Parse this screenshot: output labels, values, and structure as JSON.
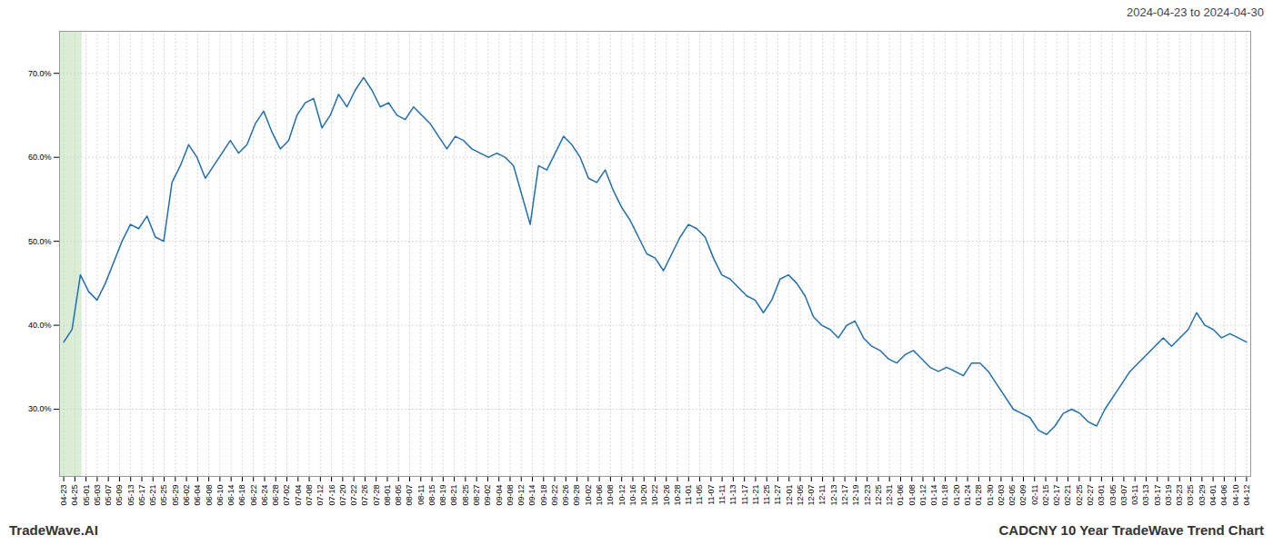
{
  "chart_data": {
    "type": "line",
    "title": "2024-04-23 to 2024-04-30",
    "annotations": [
      "TradeWave.AI",
      "CADCNY 10 Year TradeWave Trend Chart"
    ],
    "color": "#1f6eb5",
    "grid": true,
    "highlight": {
      "start": -0.5,
      "end": 2.2,
      "color": "#d6ecd2"
    },
    "ylim": [
      22,
      75
    ],
    "yticks": [
      {
        "value": 30.0,
        "label": "30.0%"
      },
      {
        "value": 40.0,
        "label": "40.0%"
      },
      {
        "value": 50.0,
        "label": "50.0%"
      },
      {
        "value": 60.0,
        "label": "60.0%"
      },
      {
        "value": 70.0,
        "label": "70.0%"
      }
    ],
    "xlim": [
      -0.5,
      142.5
    ],
    "xticks": [
      {
        "value": 0,
        "label": "04-23"
      },
      {
        "value": 1.3396,
        "label": "04-25"
      },
      {
        "value": 2.6792,
        "label": "05-01"
      },
      {
        "value": 4.0189,
        "label": "05-03"
      },
      {
        "value": 5.3585,
        "label": "05-07"
      },
      {
        "value": 6.6981,
        "label": "05-09"
      },
      {
        "value": 8.0377,
        "label": "05-13"
      },
      {
        "value": 9.3774,
        "label": "05-17"
      },
      {
        "value": 10.717,
        "label": "05-21"
      },
      {
        "value": 12.0566,
        "label": "05-25"
      },
      {
        "value": 13.3962,
        "label": "05-29"
      },
      {
        "value": 14.7358,
        "label": "06-02"
      },
      {
        "value": 16.0755,
        "label": "06-04"
      },
      {
        "value": 17.4151,
        "label": "06-08"
      },
      {
        "value": 18.7547,
        "label": "06-10"
      },
      {
        "value": 20.0943,
        "label": "06-14"
      },
      {
        "value": 21.434,
        "label": "06-18"
      },
      {
        "value": 22.7736,
        "label": "06-22"
      },
      {
        "value": 24.1132,
        "label": "06-24"
      },
      {
        "value": 25.4528,
        "label": "06-28"
      },
      {
        "value": 26.7925,
        "label": "07-02"
      },
      {
        "value": 28.1321,
        "label": "07-04"
      },
      {
        "value": 29.4717,
        "label": "07-08"
      },
      {
        "value": 30.8113,
        "label": "07-12"
      },
      {
        "value": 32.1509,
        "label": "07-16"
      },
      {
        "value": 33.4906,
        "label": "07-20"
      },
      {
        "value": 34.8302,
        "label": "07-22"
      },
      {
        "value": 36.1698,
        "label": "07-26"
      },
      {
        "value": 37.5094,
        "label": "07-28"
      },
      {
        "value": 38.8491,
        "label": "08-01"
      },
      {
        "value": 40.1887,
        "label": "08-05"
      },
      {
        "value": 41.5283,
        "label": "08-07"
      },
      {
        "value": 42.8679,
        "label": "08-11"
      },
      {
        "value": 44.2075,
        "label": "08-15"
      },
      {
        "value": 45.5472,
        "label": "08-19"
      },
      {
        "value": 46.8868,
        "label": "08-21"
      },
      {
        "value": 48.2264,
        "label": "08-25"
      },
      {
        "value": 49.566,
        "label": "08-27"
      },
      {
        "value": 50.9057,
        "label": "09-02"
      },
      {
        "value": 52.2453,
        "label": "09-04"
      },
      {
        "value": 53.5849,
        "label": "09-08"
      },
      {
        "value": 54.9245,
        "label": "09-12"
      },
      {
        "value": 56.2642,
        "label": "09-14"
      },
      {
        "value": 57.6038,
        "label": "09-18"
      },
      {
        "value": 58.9434,
        "label": "09-22"
      },
      {
        "value": 60.283,
        "label": "09-26"
      },
      {
        "value": 61.6226,
        "label": "09-28"
      },
      {
        "value": 62.9623,
        "label": "10-02"
      },
      {
        "value": 64.3019,
        "label": "10-06"
      },
      {
        "value": 65.6415,
        "label": "10-08"
      },
      {
        "value": 66.9811,
        "label": "10-12"
      },
      {
        "value": 68.3208,
        "label": "10-16"
      },
      {
        "value": 69.6604,
        "label": "10-20"
      },
      {
        "value": 71.0,
        "label": "10-22"
      },
      {
        "value": 72.3396,
        "label": "10-26"
      },
      {
        "value": 73.6792,
        "label": "10-28"
      },
      {
        "value": 75.0189,
        "label": "11-01"
      },
      {
        "value": 76.3585,
        "label": "11-05"
      },
      {
        "value": 77.6981,
        "label": "11-07"
      },
      {
        "value": 79.0377,
        "label": "11-11"
      },
      {
        "value": 80.3774,
        "label": "11-13"
      },
      {
        "value": 81.717,
        "label": "11-17"
      },
      {
        "value": 83.0566,
        "label": "11-21"
      },
      {
        "value": 84.3962,
        "label": "11-25"
      },
      {
        "value": 85.7358,
        "label": "11-27"
      },
      {
        "value": 87.0755,
        "label": "12-01"
      },
      {
        "value": 88.4151,
        "label": "12-05"
      },
      {
        "value": 89.7547,
        "label": "12-07"
      },
      {
        "value": 91.0943,
        "label": "12-11"
      },
      {
        "value": 92.434,
        "label": "12-13"
      },
      {
        "value": 93.7736,
        "label": "12-17"
      },
      {
        "value": 95.1132,
        "label": "12-19"
      },
      {
        "value": 96.4528,
        "label": "12-23"
      },
      {
        "value": 97.7925,
        "label": "12-25"
      },
      {
        "value": 99.1321,
        "label": "12-31"
      },
      {
        "value": 100.4717,
        "label": "01-06"
      },
      {
        "value": 101.8113,
        "label": "01-08"
      },
      {
        "value": 103.1509,
        "label": "01-12"
      },
      {
        "value": 104.4906,
        "label": "01-14"
      },
      {
        "value": 105.8302,
        "label": "01-18"
      },
      {
        "value": 107.1698,
        "label": "01-20"
      },
      {
        "value": 108.5094,
        "label": "01-24"
      },
      {
        "value": 109.8491,
        "label": "01-28"
      },
      {
        "value": 111.1887,
        "label": "01-30"
      },
      {
        "value": 112.5283,
        "label": "02-03"
      },
      {
        "value": 113.8679,
        "label": "02-05"
      },
      {
        "value": 115.2075,
        "label": "02-09"
      },
      {
        "value": 116.5472,
        "label": "02-11"
      },
      {
        "value": 117.8868,
        "label": "02-15"
      },
      {
        "value": 119.2264,
        "label": "02-17"
      },
      {
        "value": 120.566,
        "label": "02-21"
      },
      {
        "value": 121.9057,
        "label": "02-25"
      },
      {
        "value": 123.2453,
        "label": "02-27"
      },
      {
        "value": 124.5849,
        "label": "03-01"
      },
      {
        "value": 125.9245,
        "label": "03-05"
      },
      {
        "value": 127.2642,
        "label": "03-07"
      },
      {
        "value": 128.6038,
        "label": "03-11"
      },
      {
        "value": 129.9434,
        "label": "03-13"
      },
      {
        "value": 131.283,
        "label": "03-17"
      },
      {
        "value": 132.6226,
        "label": "03-19"
      },
      {
        "value": 133.9623,
        "label": "03-23"
      },
      {
        "value": 135.3019,
        "label": "03-25"
      },
      {
        "value": 136.6415,
        "label": "03-29"
      },
      {
        "value": 137.9811,
        "label": "04-01"
      },
      {
        "value": 139.3208,
        "label": "04-06"
      },
      {
        "value": 140.6604,
        "label": "04-10"
      },
      {
        "value": 142.0,
        "label": "04-12"
      }
    ],
    "values": [
      38.0,
      39.5,
      46.0,
      44.0,
      43.0,
      45.0,
      47.5,
      50.0,
      52.0,
      51.5,
      53.0,
      50.5,
      50.0,
      57.0,
      59.0,
      61.5,
      60.0,
      57.5,
      59.0,
      60.5,
      62.0,
      60.5,
      61.5,
      64.0,
      65.5,
      63.0,
      61.0,
      62.0,
      65.0,
      66.5,
      67.0,
      63.5,
      65.0,
      67.5,
      66.0,
      68.0,
      69.5,
      68.0,
      66.0,
      66.5,
      65.0,
      64.5,
      66.0,
      65.0,
      64.0,
      62.5,
      61.0,
      62.5,
      62.0,
      61.0,
      60.5,
      60.0,
      60.5,
      60.0,
      59.0,
      55.5,
      52.0,
      59.0,
      58.5,
      60.5,
      62.5,
      61.5,
      60.0,
      57.5,
      57.0,
      58.5,
      56.0,
      54.0,
      52.5,
      50.5,
      48.5,
      48.0,
      46.5,
      48.5,
      50.5,
      52.0,
      51.5,
      50.5,
      48.0,
      46.0,
      45.5,
      44.5,
      43.5,
      43.0,
      41.5,
      43.0,
      45.5,
      46.0,
      45.0,
      43.5,
      41.0,
      40.0,
      39.5,
      38.5,
      40.0,
      40.5,
      38.5,
      37.5,
      37.0,
      36.0,
      35.5,
      36.5,
      37.0,
      36.0,
      35.0,
      34.5,
      35.0,
      34.5,
      34.0,
      35.5,
      35.5,
      34.5,
      33.0,
      31.5,
      30.0,
      29.5,
      29.0,
      27.5,
      27.0,
      28.0,
      29.5,
      30.0,
      29.5,
      28.5,
      28.0,
      30.0,
      31.5,
      33.0,
      34.5,
      35.5,
      36.5,
      37.5,
      38.5,
      37.5,
      38.5,
      39.5,
      41.5,
      40.0,
      39.5,
      38.5,
      39.0,
      38.5,
      38.0
    ]
  }
}
